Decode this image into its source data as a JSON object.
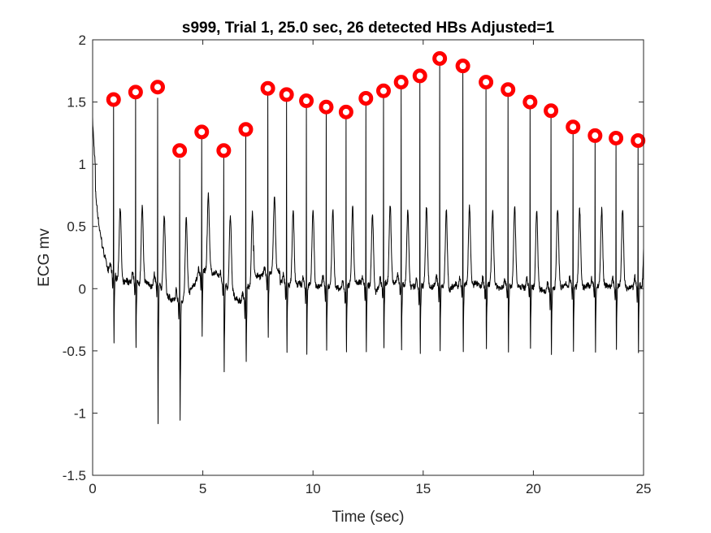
{
  "chart_data": {
    "type": "line",
    "title": "s999, Trial 1, 25.0 sec, 26 detected HBs Adjusted=1",
    "xlabel": "Time (sec)",
    "ylabel": "ECG mv",
    "xlim": [
      0,
      25
    ],
    "ylim": [
      -1.5,
      2
    ],
    "xticks": [
      0,
      5,
      10,
      15,
      20,
      25
    ],
    "yticks": [
      -1.5,
      -1,
      -0.5,
      0,
      0.5,
      1,
      1.5,
      2
    ],
    "xtick_labels": [
      "0",
      "5",
      "10",
      "15",
      "20",
      "25"
    ],
    "ytick_labels": [
      "-1.5",
      "-1",
      "-0.5",
      "0",
      "0.5",
      "1",
      "1.5",
      "2"
    ],
    "grid": false,
    "series": [
      {
        "kind": "ecg-trace",
        "color": "#000000",
        "baseline_start": 1.35,
        "beats": [
          {
            "t": 0.95,
            "r": 1.52
          },
          {
            "t": 1.95,
            "r": 1.58
          },
          {
            "t": 2.95,
            "r": 1.62
          },
          {
            "t": 3.95,
            "r": 1.11
          },
          {
            "t": 4.95,
            "r": 1.26
          },
          {
            "t": 5.95,
            "r": 1.11
          },
          {
            "t": 6.95,
            "r": 1.28
          },
          {
            "t": 7.95,
            "r": 1.61
          },
          {
            "t": 8.8,
            "r": 1.56
          },
          {
            "t": 9.7,
            "r": 1.51
          },
          {
            "t": 10.6,
            "r": 1.46
          },
          {
            "t": 11.5,
            "r": 1.42
          },
          {
            "t": 12.4,
            "r": 1.53
          },
          {
            "t": 13.2,
            "r": 1.59
          },
          {
            "t": 14.0,
            "r": 1.66
          },
          {
            "t": 14.85,
            "r": 1.71
          },
          {
            "t": 15.75,
            "r": 1.85
          },
          {
            "t": 16.8,
            "r": 1.79
          },
          {
            "t": 17.85,
            "r": 1.66
          },
          {
            "t": 18.85,
            "r": 1.6
          },
          {
            "t": 19.85,
            "r": 1.5
          },
          {
            "t": 20.8,
            "r": 1.43
          },
          {
            "t": 21.8,
            "r": 1.3
          },
          {
            "t": 22.8,
            "r": 1.23
          },
          {
            "t": 23.75,
            "r": 1.21
          },
          {
            "t": 24.75,
            "r": 1.19
          }
        ]
      },
      {
        "kind": "detected-hb-markers",
        "color": "#ff0000",
        "x": [
          0.95,
          1.95,
          2.95,
          3.95,
          4.95,
          5.95,
          6.95,
          7.95,
          8.8,
          9.7,
          10.6,
          11.5,
          12.4,
          13.2,
          14.0,
          14.85,
          15.75,
          16.8,
          17.85,
          18.85,
          19.85,
          20.8,
          21.8,
          22.8,
          23.75,
          24.75
        ],
        "y": [
          1.52,
          1.58,
          1.62,
          1.11,
          1.26,
          1.11,
          1.28,
          1.61,
          1.56,
          1.51,
          1.46,
          1.42,
          1.53,
          1.59,
          1.66,
          1.71,
          1.85,
          1.79,
          1.66,
          1.6,
          1.5,
          1.43,
          1.3,
          1.23,
          1.21,
          1.19
        ]
      }
    ]
  }
}
